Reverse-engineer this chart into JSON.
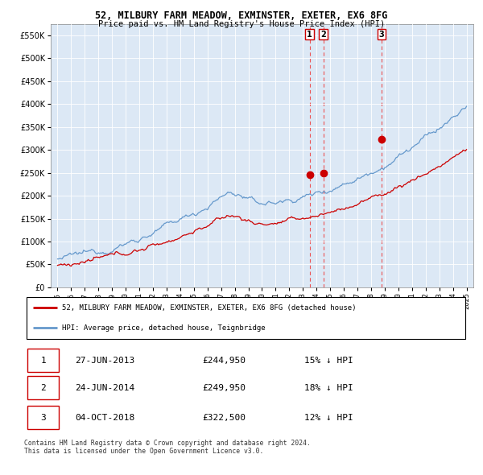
{
  "title": "52, MILBURY FARM MEADOW, EXMINSTER, EXETER, EX6 8FG",
  "subtitle": "Price paid vs. HM Land Registry's House Price Index (HPI)",
  "ylim": [
    0,
    575000
  ],
  "yticks": [
    0,
    50000,
    100000,
    150000,
    200000,
    250000,
    300000,
    350000,
    400000,
    450000,
    500000,
    550000
  ],
  "background_color": "#ffffff",
  "chart_bg_color": "#dce8f5",
  "grid_color": "#ffffff",
  "legend_entries": [
    "52, MILBURY FARM MEADOW, EXMINSTER, EXETER, EX6 8FG (detached house)",
    "HPI: Average price, detached house, Teignbridge"
  ],
  "table_rows": [
    {
      "num": "1",
      "date": "27-JUN-2013",
      "price": "£244,950",
      "hpi": "15% ↓ HPI"
    },
    {
      "num": "2",
      "date": "24-JUN-2014",
      "price": "£249,950",
      "hpi": "18% ↓ HPI"
    },
    {
      "num": "3",
      "date": "04-OCT-2018",
      "price": "£322,500",
      "hpi": "12% ↓ HPI"
    }
  ],
  "footer": "Contains HM Land Registry data © Crown copyright and database right 2024.\nThis data is licensed under the Open Government Licence v3.0.",
  "hpi_color": "#6699cc",
  "price_color": "#cc0000",
  "vline_color": "#ee4444",
  "sale_years": [
    2013.49,
    2014.49,
    2018.75
  ],
  "sale_prices": [
    244950,
    249950,
    322500
  ],
  "sale_labels": [
    "1",
    "2",
    "3"
  ]
}
